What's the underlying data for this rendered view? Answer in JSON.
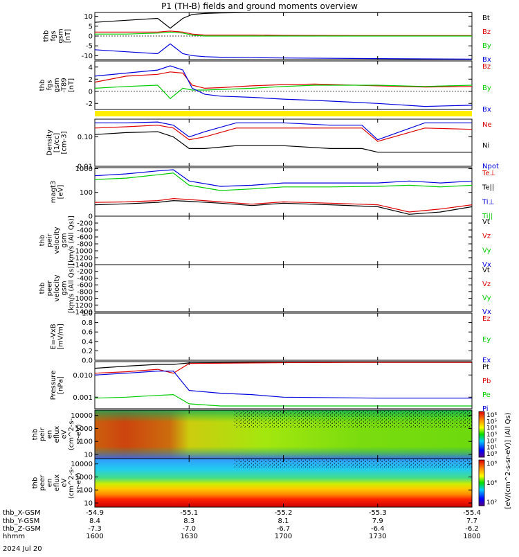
{
  "title": "P1 (TH-B) fields and ground moments overview",
  "date_label": "2024 Jul 20",
  "colors": {
    "black": "#000000",
    "red": "#dd0000",
    "green": "#00cc00",
    "blue": "#0000dd",
    "yellow": "#ffee00"
  },
  "chart_data": [
    {
      "type": "line",
      "panel": "fgs-gsm",
      "ylabel_lines": [
        "thb",
        "fgs",
        "gsm",
        "[nT]"
      ],
      "ylim": [
        -12,
        12
      ],
      "yticks": [
        "10",
        "5",
        "0",
        "-5",
        "-10"
      ],
      "ytick_values": [
        10,
        5,
        0,
        -5,
        -10
      ],
      "x": [
        1600,
        1610,
        1620,
        1624,
        1628,
        1631,
        1635,
        1640,
        1650,
        1700,
        1730,
        1800
      ],
      "series": [
        {
          "name": "Bt",
          "color": "#000000",
          "values": [
            7,
            8,
            9,
            4,
            9,
            11,
            11.5,
            11.8,
            12,
            12,
            12,
            12
          ]
        },
        {
          "name": "Bz",
          "color": "#dd0000",
          "values": [
            2,
            2,
            2,
            2.5,
            2,
            1,
            0.5,
            0.5,
            0.5,
            0.3,
            0.2,
            0.2
          ]
        },
        {
          "name": "By",
          "color": "#00cc00",
          "values": [
            1,
            1,
            1.5,
            2,
            1.5,
            0.5,
            0,
            0,
            0,
            0,
            0,
            0
          ]
        },
        {
          "name": "Bx",
          "color": "#0000dd",
          "values": [
            -7,
            -8,
            -9,
            -4,
            -9,
            -10,
            -10.5,
            -10.8,
            -11,
            -11.2,
            -11.5,
            -11.8
          ]
        }
      ]
    },
    {
      "type": "line",
      "panel": "fgs-gsm-t89",
      "ylabel_lines": [
        "thb",
        "fgs",
        "gsm",
        "-T89",
        "[nT]"
      ],
      "ylim": [
        -3,
        5
      ],
      "yticks": [
        "4",
        "2",
        "0",
        "-2"
      ],
      "ytick_values": [
        4,
        2,
        0,
        -2
      ],
      "x": [
        1600,
        1610,
        1620,
        1624,
        1628,
        1631,
        1635,
        1640,
        1650,
        1700,
        1710,
        1730,
        1745,
        1800
      ],
      "series": [
        {
          "name": "Bz",
          "color": "#dd0000",
          "values": [
            1.5,
            2.5,
            2.8,
            3.2,
            3,
            1,
            0.5,
            0.6,
            0.9,
            1.1,
            1.2,
            0.9,
            0.7,
            0.8
          ]
        },
        {
          "name": "By",
          "color": "#00cc00",
          "values": [
            0.5,
            0.8,
            1,
            -1.2,
            0.5,
            0.2,
            0.2,
            0.3,
            0.5,
            0.8,
            1,
            1,
            0.8,
            1
          ]
        },
        {
          "name": "Bx",
          "color": "#0000dd",
          "values": [
            2.5,
            3,
            3.5,
            4.2,
            3.5,
            0.5,
            -0.5,
            -0.8,
            -1,
            -1.3,
            -1.5,
            -2,
            -2.5,
            -2.3
          ]
        }
      ]
    },
    {
      "type": "line",
      "panel": "density",
      "scale": "log",
      "ylabel_lines": [
        "Density",
        "[1/cc]",
        "[cm-3]"
      ],
      "ylim": [
        0.01,
        0.4
      ],
      "yticks": [
        "0.10",
        "0.01"
      ],
      "ytick_values": [
        0.1,
        0.01
      ],
      "x": [
        1600,
        1610,
        1620,
        1625,
        1630,
        1635,
        1645,
        1700,
        1715,
        1725,
        1730,
        1745,
        1800
      ],
      "series": [
        {
          "name": "Ne",
          "color": "#dd0000",
          "values": [
            0.2,
            0.22,
            0.25,
            0.2,
            0.08,
            0.1,
            0.2,
            0.2,
            0.2,
            0.2,
            0.07,
            0.2,
            0.18
          ]
        },
        {
          "name": "Ni",
          "color": "#000000",
          "values": [
            0.12,
            0.14,
            0.15,
            0.1,
            0.04,
            0.04,
            0.05,
            0.05,
            0.04,
            0.04,
            0.03,
            0.03,
            0.03
          ]
        },
        {
          "name": "Npot",
          "color": "#0000dd",
          "values": [
            0.3,
            0.3,
            0.32,
            0.25,
            0.1,
            0.15,
            0.3,
            0.3,
            0.25,
            0.25,
            0.08,
            0.3,
            0.3
          ]
        }
      ]
    },
    {
      "type": "line",
      "panel": "temperature",
      "scale": "log",
      "ylabel_lines": [
        "magt3",
        "[eV]"
      ],
      "ylim": [
        10,
        1100
      ],
      "yticks": [
        "1000",
        "100"
      ],
      "ytick_values": [
        1000,
        100
      ],
      "x": [
        1600,
        1610,
        1620,
        1625,
        1630,
        1640,
        1650,
        1700,
        1715,
        1730,
        1740,
        1750,
        1800
      ],
      "series": [
        {
          "name": "Te⊥",
          "color": "#dd0000",
          "values": [
            38,
            40,
            45,
            55,
            50,
            40,
            32,
            40,
            35,
            30,
            15,
            20,
            30
          ]
        },
        {
          "name": "Te||",
          "color": "#000000",
          "values": [
            30,
            33,
            38,
            45,
            42,
            35,
            28,
            35,
            30,
            25,
            12,
            15,
            25
          ]
        },
        {
          "name": "Ti⊥",
          "color": "#0000dd",
          "values": [
            500,
            600,
            800,
            900,
            300,
            180,
            200,
            250,
            250,
            250,
            300,
            250,
            300
          ]
        },
        {
          "name": "Ti||",
          "color": "#00cc00",
          "values": [
            350,
            400,
            550,
            650,
            200,
            120,
            140,
            170,
            170,
            180,
            200,
            170,
            200
          ]
        }
      ]
    },
    {
      "type": "line",
      "panel": "peir-velocity",
      "ylabel_lines": [
        "thb",
        "peir",
        "velocity",
        "gsm",
        "[km/s (All Qs)]"
      ],
      "ylim": [
        -1400,
        0
      ],
      "yticks": [
        "0",
        "-200",
        "-400",
        "-600",
        "-800",
        "-1000",
        "-1200",
        "-1400"
      ],
      "ytick_values": [
        0,
        -200,
        -400,
        -600,
        -800,
        -1000,
        -1200,
        -1400
      ],
      "series": [
        {
          "name": "Vt",
          "color": "#000000",
          "values": []
        },
        {
          "name": "Vz",
          "color": "#dd0000",
          "values": []
        },
        {
          "name": "Vy",
          "color": "#00cc00",
          "values": []
        },
        {
          "name": "Vx",
          "color": "#0000dd",
          "values": []
        }
      ]
    },
    {
      "type": "line",
      "panel": "peer-velocity",
      "ylabel_lines": [
        "thb",
        "peer",
        "velocity",
        "gsm",
        "[km/s (All Qs)]"
      ],
      "ylim": [
        -1400,
        0
      ],
      "yticks": [
        "0",
        "-200",
        "-400",
        "-600",
        "-800",
        "-1000",
        "-1200",
        "-1400"
      ],
      "ytick_values": [
        0,
        -200,
        -400,
        -600,
        -800,
        -1000,
        -1200,
        -1400
      ],
      "series": [
        {
          "name": "Vt",
          "color": "#000000",
          "values": []
        },
        {
          "name": "Vz",
          "color": "#dd0000",
          "values": []
        },
        {
          "name": "Vy",
          "color": "#00cc00",
          "values": []
        },
        {
          "name": "Vx",
          "color": "#0000dd",
          "values": []
        }
      ]
    },
    {
      "type": "line",
      "panel": "efield",
      "ylabel_lines": [
        "E=-VxB",
        "[mV/m]"
      ],
      "ylim": [
        0,
        1
      ],
      "yticks": [
        "1.0",
        "0.8",
        "0.6",
        "0.4",
        "0.2",
        "0.0"
      ],
      "ytick_values": [
        1,
        0.8,
        0.6,
        0.4,
        0.2,
        0
      ],
      "series": [
        {
          "name": "Ez",
          "color": "#dd0000",
          "values": []
        },
        {
          "name": "Ey",
          "color": "#00cc00",
          "values": []
        },
        {
          "name": "Ex",
          "color": "#0000dd",
          "values": []
        }
      ]
    },
    {
      "type": "line",
      "panel": "pressure",
      "scale": "log",
      "ylabel_lines": [
        "Pressure",
        "[nPa]"
      ],
      "ylim": [
        0.0003,
        0.04
      ],
      "yticks": [
        "0.010",
        "0.001"
      ],
      "ytick_values": [
        0.01,
        0.001
      ],
      "x": [
        1600,
        1610,
        1620,
        1625,
        1630,
        1640,
        1650,
        1700,
        1730,
        1800
      ],
      "series": [
        {
          "name": "Pt",
          "color": "#000000",
          "values": [
            0.02,
            0.025,
            0.03,
            0.03,
            0.035,
            0.036,
            0.037,
            0.038,
            0.038,
            0.038
          ]
        },
        {
          "name": "Pb",
          "color": "#dd0000",
          "values": [
            0.012,
            0.014,
            0.018,
            0.012,
            0.033,
            0.034,
            0.035,
            0.036,
            0.037,
            0.037
          ]
        },
        {
          "name": "Pe",
          "color": "#00cc00",
          "values": [
            0.0009,
            0.001,
            0.0012,
            0.0013,
            0.0005,
            0.0004,
            0.0004,
            0.0004,
            0.0004,
            0.0004
          ]
        },
        {
          "name": "Pi",
          "color": "#0000dd",
          "values": [
            0.01,
            0.012,
            0.015,
            0.015,
            0.002,
            0.0015,
            0.0013,
            0.001,
            0.0009,
            0.0009
          ]
        }
      ]
    },
    {
      "type": "heatmap",
      "panel": "peir-spectrogram",
      "ylabel_lines": [
        "thb",
        "peir",
        "en",
        "eflux",
        "eV",
        "(cm^2-s-",
        "sr-eV)"
      ],
      "yticks": [
        "10000",
        "1000",
        "100",
        "10"
      ],
      "ytick_values": [
        10000,
        1000,
        100,
        10
      ]
    },
    {
      "type": "heatmap",
      "panel": "peer-spectrogram",
      "ylabel_lines": [
        "thb",
        "peer",
        "en",
        "eflux",
        "eV",
        "(cm^2-s-",
        "sr-eV)"
      ],
      "yticks": [
        "10000",
        "1000",
        "100",
        "10"
      ],
      "ytick_values": [
        10000,
        1000,
        100,
        10
      ]
    }
  ],
  "colorbars": [
    {
      "ticks": [
        "10⁶",
        "10⁵",
        "10⁴",
        "10³",
        "10²",
        "10¹",
        "10⁰"
      ]
    },
    {
      "ticks": [
        "10⁸",
        "10⁴",
        "10²"
      ]
    }
  ],
  "colorbar_label": "[eV/(cm^2-s-sr-eV)] (All Qs)",
  "xaxis": {
    "row_labels": [
      "thb_X-GSM",
      "thb_Y-GSM",
      "thb_Z-GSM",
      "hhmm"
    ],
    "ticks": [
      {
        "x": 1600,
        "values": [
          "-54.9",
          "8.4",
          "-7.3",
          "1600"
        ]
      },
      {
        "x": 1630,
        "values": [
          "-55.1",
          "8.3",
          "-7.0",
          "1630"
        ]
      },
      {
        "x": 1700,
        "values": [
          "-55.2",
          "8.1",
          "-6.7",
          "1700"
        ]
      },
      {
        "x": 1730,
        "values": [
          "-55.3",
          "7.9",
          "-6.4",
          "1730"
        ]
      },
      {
        "x": 1800,
        "values": [
          "-55.4",
          "7.7",
          "-6.2",
          "1800"
        ]
      }
    ]
  }
}
